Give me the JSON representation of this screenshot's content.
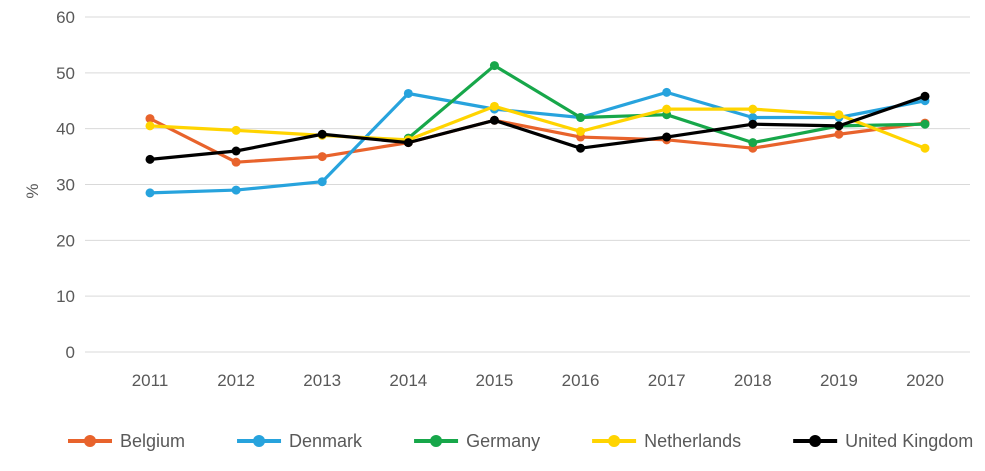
{
  "chart_data": {
    "type": "line",
    "title": "",
    "xlabel": "",
    "ylabel": "%",
    "ylim": [
      0,
      60
    ],
    "y_ticks": [
      0,
      10,
      20,
      30,
      40,
      50,
      60
    ],
    "grid": true,
    "legend_position": "bottom",
    "categories": [
      "2011",
      "2012",
      "2013",
      "2014",
      "2015",
      "2016",
      "2017",
      "2018",
      "2019",
      "2020"
    ],
    "series": [
      {
        "name": "Belgium",
        "color": "#e8632c",
        "values": [
          41.8,
          34,
          35,
          37.5,
          41.5,
          38.5,
          38,
          36.5,
          39,
          41
        ]
      },
      {
        "name": "Denmark",
        "color": "#27a3dd",
        "values": [
          28.5,
          29,
          30.5,
          46.3,
          43.5,
          42,
          46.5,
          42,
          42,
          45
        ]
      },
      {
        "name": "Germany",
        "color": "#17a74a",
        "values": [
          null,
          null,
          null,
          38.3,
          51.3,
          42,
          42.5,
          37.5,
          40.5,
          40.8
        ]
      },
      {
        "name": "Netherlands",
        "color": "#ffd400",
        "values": [
          40.5,
          39.7,
          38.8,
          38,
          44,
          39.5,
          43.5,
          43.5,
          42.5,
          36.5
        ]
      },
      {
        "name": "United Kingdom",
        "color": "#000000",
        "values": [
          34.5,
          36,
          39,
          37.5,
          41.5,
          36.5,
          38.5,
          40.8,
          40.5,
          45.8
        ]
      }
    ],
    "colors": {
      "grid": "#d9d9d9",
      "text": "#595959"
    }
  }
}
